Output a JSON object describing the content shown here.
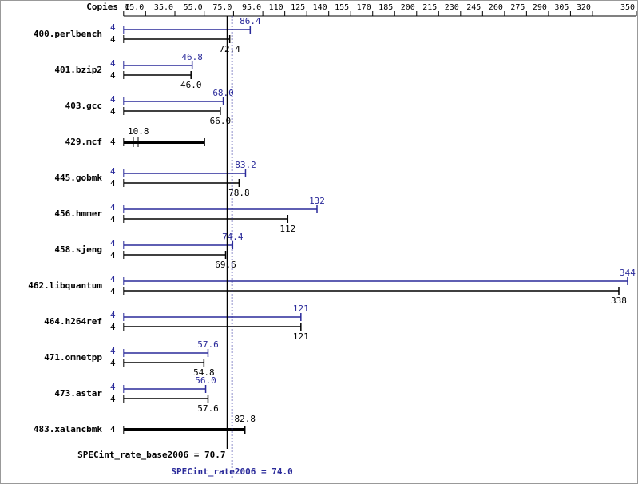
{
  "chart_data": {
    "type": "range-bar",
    "axis_label": "Copies",
    "xlim": [
      0,
      350
    ],
    "xticks": [
      0,
      {
        "value": 15,
        "label": "15.0"
      },
      {
        "value": 35,
        "label": "35.0"
      },
      {
        "value": 55,
        "label": "55.0"
      },
      {
        "value": 75,
        "label": "75.0"
      },
      {
        "value": 95,
        "label": "95.0"
      },
      110,
      125,
      140,
      155,
      170,
      185,
      200,
      215,
      230,
      245,
      260,
      275,
      290,
      305,
      320,
      350
    ],
    "categories": [
      "400.perlbench",
      "401.bzip2",
      "403.gcc",
      "429.mcf",
      "445.gobmk",
      "456.hmmer",
      "458.sjeng",
      "462.libquantum",
      "464.h264ref",
      "471.omnetpp",
      "473.astar",
      "483.xalancbmk"
    ],
    "series": [
      {
        "name": "SPECint_rate2006 = 74.0",
        "color": "#2a2a9a",
        "overall": 74.0,
        "copies": [
          4,
          4,
          4,
          null,
          4,
          4,
          4,
          4,
          4,
          4,
          4,
          null
        ],
        "values": [
          86.4,
          46.8,
          68.0,
          null,
          83.2,
          132,
          74.4,
          344,
          121,
          57.6,
          56.0,
          null
        ],
        "value_labels": [
          "86.4",
          "46.8",
          "68.0",
          null,
          "83.2",
          "132",
          "74.4",
          "344",
          "121",
          "57.6",
          "56.0",
          null
        ]
      },
      {
        "name": "SPECint_rate_base2006 = 70.7",
        "color": "#000000",
        "overall": 70.7,
        "copies": [
          4,
          4,
          4,
          4,
          4,
          4,
          4,
          4,
          4,
          4,
          4,
          4
        ],
        "values": [
          72.4,
          46.0,
          66.0,
          55.2,
          78.8,
          112,
          69.6,
          338,
          121,
          54.8,
          57.6,
          82.8
        ],
        "value_labels": [
          "72.4",
          "46.0",
          "66.0",
          null,
          "78.8",
          "112",
          "69.6",
          "338",
          "121",
          "54.8",
          "57.6",
          "82.8"
        ]
      }
    ],
    "annotations": [
      {
        "category_index": 3,
        "text": "10.8"
      }
    ]
  }
}
